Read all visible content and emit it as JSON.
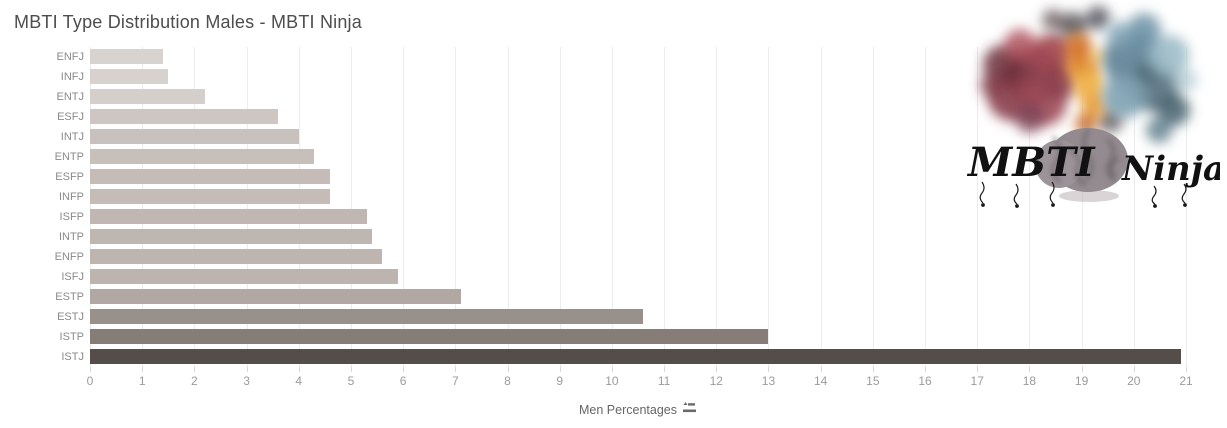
{
  "title": "MBTI Type Distribution Males - MBTI Ninja",
  "chart_data": {
    "type": "bar",
    "orientation": "horizontal",
    "title": "MBTI Type Distribution Males - MBTI Ninja",
    "xlabel": "Men Percentages",
    "ylabel": "",
    "xlim": [
      0,
      21
    ],
    "x_ticks": [
      0,
      1,
      2,
      3,
      4,
      5,
      6,
      7,
      8,
      9,
      10,
      11,
      12,
      13,
      14,
      15,
      16,
      17,
      18,
      19,
      20,
      21
    ],
    "grid": "vertical",
    "legend": "none",
    "categories": [
      "ENFJ",
      "INFJ",
      "ENTJ",
      "ESFJ",
      "INTJ",
      "ENTP",
      "ESFP",
      "INFP",
      "ISFP",
      "INTP",
      "ENFP",
      "ISFJ",
      "ESTP",
      "ESTJ",
      "ISTP",
      "ISTJ"
    ],
    "values": [
      1.4,
      1.5,
      2.2,
      3.6,
      4.0,
      4.3,
      4.6,
      4.6,
      5.3,
      5.4,
      5.6,
      5.9,
      7.1,
      10.6,
      13.0,
      20.9
    ],
    "bar_colors": [
      "#d9d3d0",
      "#d8d2cf",
      "#d5cfcc",
      "#cdc6c2",
      "#c9c1bd",
      "#c7bfba",
      "#c5bcb7",
      "#c5bcb7",
      "#c0b7b2",
      "#c0b6b1",
      "#bfb5b0",
      "#beb4af",
      "#b2a8a3",
      "#9a908b",
      "#867d78",
      "#544d49"
    ],
    "gridline_color": "#ececec",
    "tick_color": "#9b9b9b"
  },
  "axis_controls": {
    "sort_icon": "sort-ascending-icon"
  },
  "logo": {
    "text_left": "MBTI",
    "text_right": "Ninja",
    "description": "brain-with-color-smoke-logo",
    "smoke_colors": [
      "#7c3744",
      "#e08a2e",
      "#f0b44e",
      "#64869a",
      "#9dbcc8",
      "#4c4c55"
    ]
  }
}
